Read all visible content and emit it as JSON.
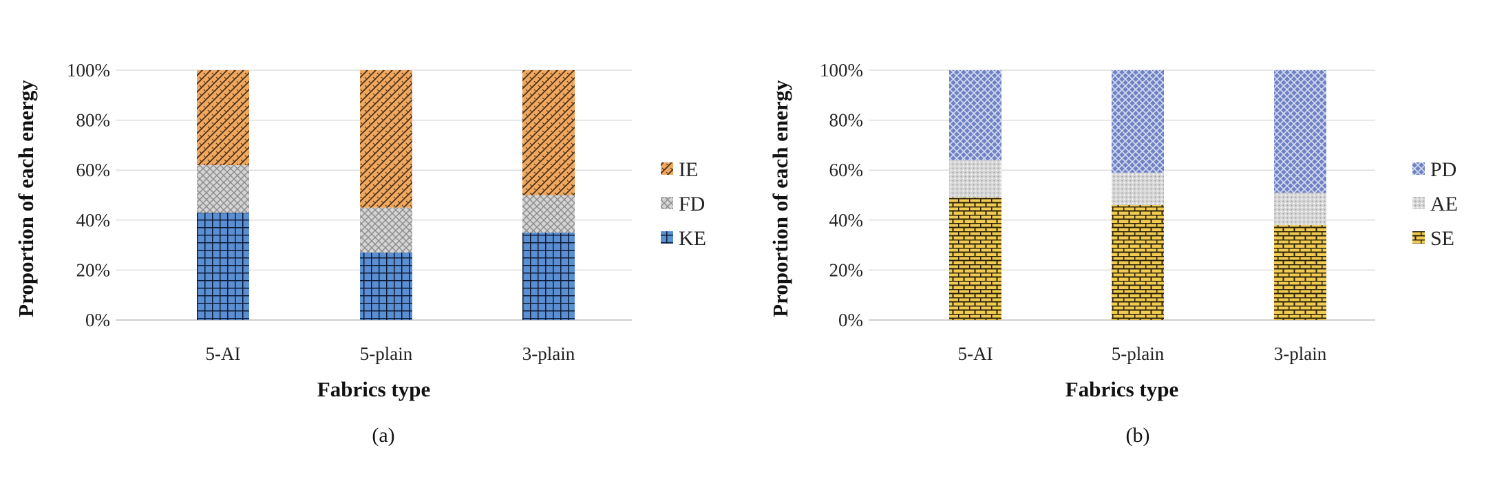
{
  "chart_data": [
    {
      "type": "bar",
      "stacked": true,
      "caption": "(a)",
      "categories": [
        "5-AI",
        "5-plain",
        "3-plain"
      ],
      "xlabel": "Fabrics type",
      "ylabel": "Proportion of each energy",
      "ylim": [
        0,
        100
      ],
      "yticks": [
        "0%",
        "20%",
        "40%",
        "60%",
        "80%",
        "100%"
      ],
      "grid": true,
      "legend_position": "right",
      "series": [
        {
          "name": "KE",
          "values": [
            43,
            27,
            35
          ],
          "color": "#5b8fd4",
          "pattern": "grid"
        },
        {
          "name": "FD",
          "values": [
            19,
            18,
            15
          ],
          "color": "#c8c8c8",
          "pattern": "cross"
        },
        {
          "name": "IE",
          "values": [
            38,
            55,
            50
          ],
          "color": "#f0a860",
          "pattern": "weave"
        }
      ],
      "legend_order": [
        "IE",
        "FD",
        "KE"
      ]
    },
    {
      "type": "bar",
      "stacked": true,
      "caption": "(b)",
      "categories": [
        "5-AI",
        "5-plain",
        "3-plain"
      ],
      "xlabel": "Fabrics type",
      "ylabel": "Proportion of each energy",
      "ylim": [
        0,
        100
      ],
      "yticks": [
        "0%",
        "20%",
        "40%",
        "60%",
        "80%",
        "100%"
      ],
      "grid": true,
      "legend_position": "right",
      "series": [
        {
          "name": "SE",
          "values": [
            49,
            46,
            38
          ],
          "color": "#f2cc52",
          "pattern": "brick"
        },
        {
          "name": "AE",
          "values": [
            15,
            13,
            13
          ],
          "color": "#d0d0d0",
          "pattern": "dots"
        },
        {
          "name": "PD",
          "values": [
            36,
            41,
            49
          ],
          "color": "#6f82c4",
          "pattern": "diamond"
        }
      ],
      "legend_order": [
        "PD",
        "AE",
        "SE"
      ]
    }
  ]
}
